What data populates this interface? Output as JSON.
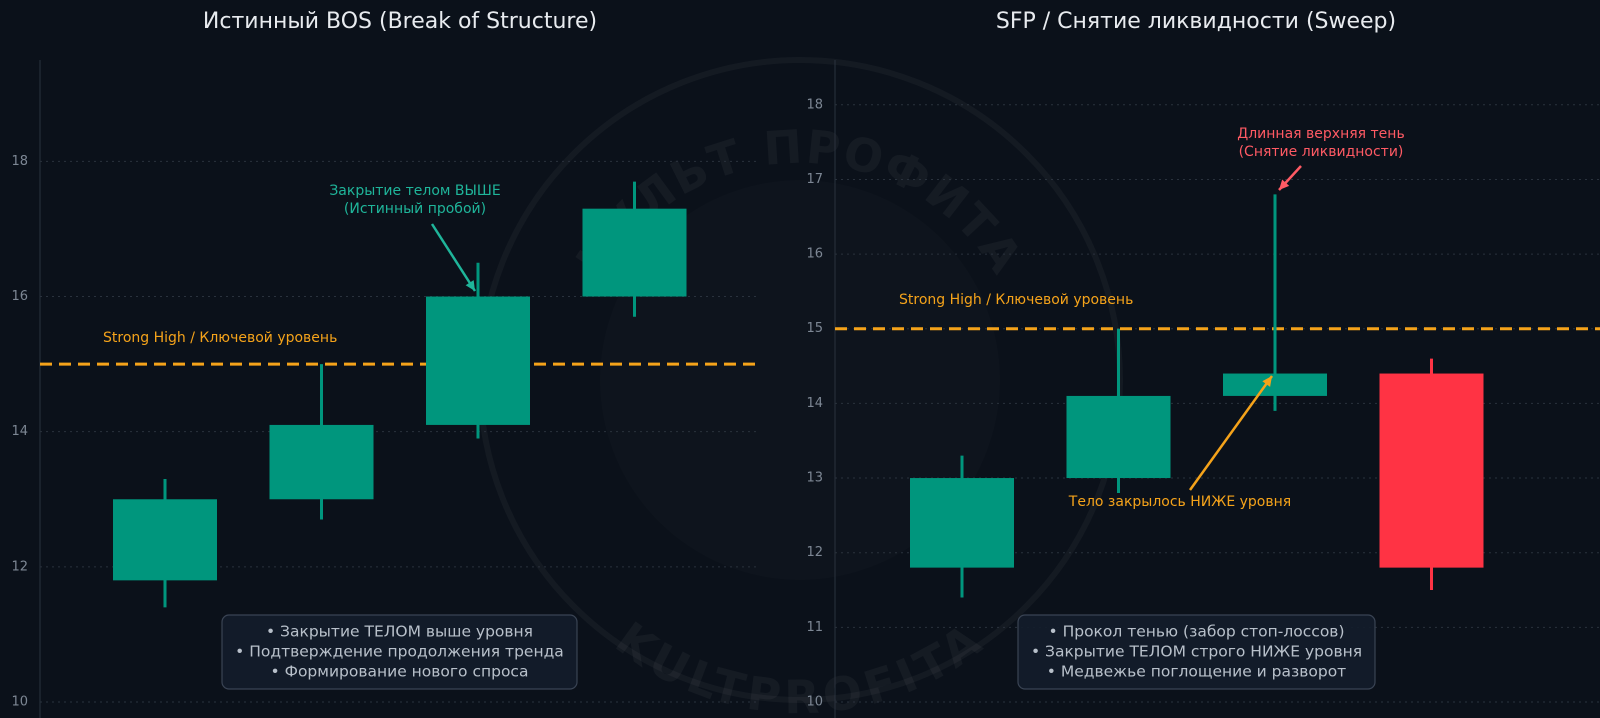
{
  "chart_data": [
    {
      "type": "candlestick",
      "title": "Истинный BOS (Break of Structure)",
      "categories": [
        null,
        null,
        null,
        null
      ],
      "open": [
        11.8,
        13.0,
        14.1,
        16.0
      ],
      "high": [
        13.3,
        15.0,
        16.5,
        17.7
      ],
      "low": [
        11.4,
        12.7,
        13.9,
        15.7
      ],
      "close": [
        13.0,
        14.1,
        16.0,
        17.3
      ],
      "up_color": "#00967d",
      "down_color": "#ff3344",
      "ylim": [
        10,
        19.5
      ],
      "yticks": [
        10,
        12,
        14,
        16,
        18
      ],
      "grid": true,
      "level": {
        "value": 15,
        "label": "Strong High / Ключевой уровень",
        "color": "#f5a31a"
      },
      "annotations": [
        {
          "lines": [
            "Закрытие телом ВЫШЕ",
            "(Истинный пробой)"
          ],
          "color": "#1fb59a"
        }
      ],
      "notes": [
        "• Закрытие ТЕЛОМ выше уровня",
        "• Подтверждение продолжения тренда",
        "• Формирование нового спроса"
      ]
    },
    {
      "type": "candlestick",
      "title": "SFP / Снятие ликвидности (Sweep)",
      "categories": [
        null,
        null,
        null,
        null
      ],
      "open": [
        11.8,
        13.0,
        14.1,
        14.4
      ],
      "high": [
        13.3,
        15.0,
        16.8,
        14.6
      ],
      "low": [
        11.4,
        12.8,
        13.9,
        11.5
      ],
      "close": [
        13.0,
        14.1,
        14.4,
        11.8
      ],
      "up_color": "#00967d",
      "down_color": "#ff3344",
      "ylim": [
        10,
        18.6
      ],
      "yticks": [
        10,
        11,
        12,
        13,
        14,
        15,
        16,
        17,
        18
      ],
      "grid": true,
      "level": {
        "value": 15,
        "label": "Strong High / Ключевой уровень",
        "color": "#f5a31a"
      },
      "annotations": [
        {
          "lines": [
            "Длинная верхняя тень",
            "(Снятие ликвидности)"
          ],
          "color": "#ff5a64"
        },
        {
          "lines": [
            "Тело закрылось НИЖЕ уровня"
          ],
          "color": "#f5a31a"
        }
      ],
      "notes": [
        "• Прокол тенью (забор стоп-лоссов)",
        "• Закрытие ТЕЛОМ строго НИЖЕ уровня",
        "• Медвежье поглощение и разворот"
      ]
    }
  ],
  "watermark": [
    "КУЛЬТ ПРОФИТА",
    "KULTPROFITA"
  ]
}
